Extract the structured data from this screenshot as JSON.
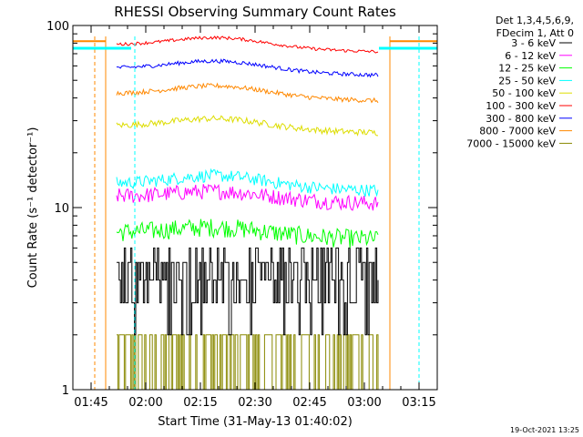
{
  "chart_data": {
    "type": "line",
    "title": "RHESSI Observing Summary Count Rates",
    "xlabel": "Start Time (31-May-13 01:40:02)",
    "ylabel": "Count Rate (s⁻¹ detector⁻¹)",
    "yscale": "log",
    "ylim": [
      1,
      100
    ],
    "xlim": [
      "01:40",
      "03:20"
    ],
    "x_ticks": [
      "01:45",
      "02:00",
      "02:15",
      "02:30",
      "02:45",
      "03:00",
      "03:15"
    ],
    "y_ticks": [
      "1",
      "10",
      "100"
    ],
    "grid": false,
    "legend_position": "right",
    "legend_header": [
      "Det 1,3,4,5,6,9,",
      "FDecim 1, Att 0"
    ],
    "timestamp": "19-Oct-2021 13:25",
    "series": [
      {
        "name": "3 - 6 keV",
        "color": "#000000",
        "base": 3.0,
        "noise": 0.45,
        "bump": 0.15,
        "step": true
      },
      {
        "name": "6 - 12 keV",
        "color": "#ff00ff",
        "base": 11.5,
        "noise": 0.1,
        "bump": 0.1
      },
      {
        "name": "12 - 25 keV",
        "color": "#00ff00",
        "base": 7.3,
        "noise": 0.12,
        "bump": 0.1
      },
      {
        "name": "25 - 50 keV",
        "color": "#00ffff",
        "base": 13.5,
        "noise": 0.08,
        "bump": 0.14
      },
      {
        "name": "50 - 100 keV",
        "color": "#dddd00",
        "base": 28.0,
        "noise": 0.04,
        "bump": 0.13
      },
      {
        "name": "100 - 300 keV",
        "color": "#ff0000",
        "base": 78.0,
        "noise": 0.02,
        "bump": 0.13
      },
      {
        "name": "300 - 800 keV",
        "color": "#0000ff",
        "base": 58.0,
        "noise": 0.025,
        "bump": 0.13
      },
      {
        "name": "800 - 7000 keV",
        "color": "#ff8800",
        "base": 42.0,
        "noise": 0.03,
        "bump": 0.14
      },
      {
        "name": "7000 - 15000 keV",
        "color": "#888800",
        "base": 1.4,
        "noise": 0.3,
        "bump": 0.0,
        "step": true
      }
    ],
    "observing_window": {
      "start": "01:52",
      "end": "03:04"
    }
  }
}
